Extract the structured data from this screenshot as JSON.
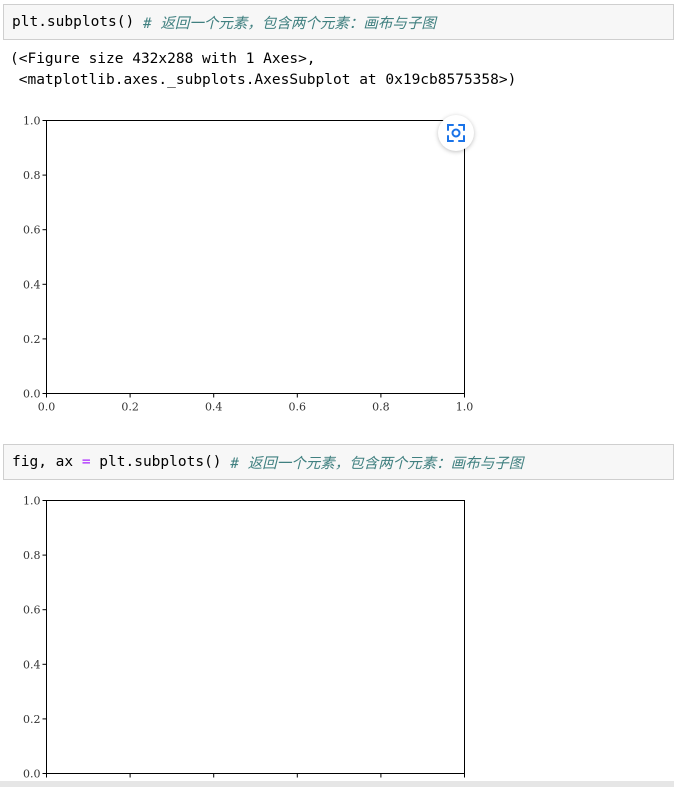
{
  "cell1": {
    "code": "plt.subplots() ",
    "comment": "# 返回一个元素，包含两个元素：画布与子图"
  },
  "output1": {
    "line1": "(<Figure size 432x288 with 1 Axes>,",
    "line2": " <matplotlib.axes._subplots.AxesSubplot at 0x19cb8575358>)"
  },
  "cell2": {
    "code_a": "fig, ax ",
    "op": "=",
    "code_b": " plt.subplots() ",
    "comment": "# 返回一个元素，包含两个元素：画布与子图"
  },
  "focus_icon": "focus-scan-icon",
  "colors": {
    "comment": "#408080",
    "operator": "#aa22ff",
    "focus_icon": "#1a73e8"
  },
  "chart_data": [
    {
      "type": "scatter",
      "series": [],
      "xlim": [
        0.0,
        1.0
      ],
      "ylim": [
        0.0,
        1.0
      ],
      "xticks": [
        "0.0",
        "0.2",
        "0.4",
        "0.6",
        "0.8",
        "1.0"
      ],
      "yticks": [
        "0.0",
        "0.2",
        "0.4",
        "0.6",
        "0.8",
        "1.0"
      ],
      "grid": false
    },
    {
      "type": "scatter",
      "series": [],
      "xlim": [
        0.0,
        1.0
      ],
      "ylim": [
        0.0,
        1.0
      ],
      "xticks": [],
      "yticks": [
        "0.0",
        "0.2",
        "0.4",
        "0.6",
        "0.8",
        "1.0"
      ],
      "grid": false
    }
  ]
}
